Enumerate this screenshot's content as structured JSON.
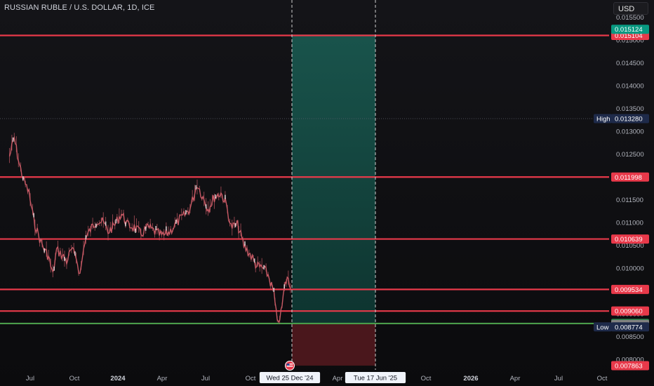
{
  "title": "RUSSIAN RUBLE / U.S. DOLLAR, 1D, ICE",
  "currency_button": "USD",
  "colors": {
    "background": "#0c0c0f",
    "resistance_line": "#e8394a",
    "support_line": "#4a9c4a",
    "candle": "#c85a65",
    "profit_zone": "#0f5b50",
    "loss_zone": "#5a1a20",
    "high_low_tag": "#1e2a4a"
  },
  "chart_data": {
    "type": "line",
    "x_axis_ticks": [
      "Jul",
      "Oct",
      "2024",
      "Apr",
      "Jul",
      "Oct",
      "Wed 25 Dec '24",
      "Apr",
      "Tue 17 Jun '25",
      "Oct",
      "2026",
      "Apr",
      "Jul",
      "Oct"
    ],
    "y_axis_ticks": [
      "0.015500",
      "0.015000",
      "0.014500",
      "0.014000",
      "0.013500",
      "0.013000",
      "0.012500",
      "0.012000",
      "0.011500",
      "0.011000",
      "0.010500",
      "0.010000",
      "0.009500",
      "0.009000",
      "0.008500",
      "0.008000"
    ],
    "ylim": [
      0.00777,
      0.01585
    ],
    "price_series": [
      [
        "2023-05-15",
        0.01245
      ],
      [
        "2023-05-25",
        0.01285
      ],
      [
        "2023-06-05",
        0.01225
      ],
      [
        "2023-06-15",
        0.0119
      ],
      [
        "2023-06-25",
        0.01165
      ],
      [
        "2023-07-05",
        0.01105
      ],
      [
        "2023-07-15",
        0.01072
      ],
      [
        "2023-07-25",
        0.01045
      ],
      [
        "2023-08-05",
        0.01025
      ],
      [
        "2023-08-14",
        0.00985
      ],
      [
        "2023-08-22",
        0.0104
      ],
      [
        "2023-09-01",
        0.0103
      ],
      [
        "2023-09-12",
        0.01015
      ],
      [
        "2023-09-22",
        0.0104
      ],
      [
        "2023-10-02",
        0.01025
      ],
      [
        "2023-10-10",
        0.00985
      ],
      [
        "2023-10-20",
        0.0106
      ],
      [
        "2023-11-01",
        0.01085
      ],
      [
        "2023-11-15",
        0.01105
      ],
      [
        "2023-11-28",
        0.011
      ],
      [
        "2023-12-08",
        0.0108
      ],
      [
        "2023-12-20",
        0.01092
      ],
      [
        "2024-01-05",
        0.0112
      ],
      [
        "2024-01-18",
        0.01095
      ],
      [
        "2024-02-01",
        0.0109
      ],
      [
        "2024-02-15",
        0.01075
      ],
      [
        "2024-03-01",
        0.0109
      ],
      [
        "2024-03-15",
        0.0108
      ],
      [
        "2024-04-01",
        0.0107
      ],
      [
        "2024-04-15",
        0.0108
      ],
      [
        "2024-05-01",
        0.011
      ],
      [
        "2024-05-15",
        0.01115
      ],
      [
        "2024-05-28",
        0.0113
      ],
      [
        "2024-06-12",
        0.01185
      ],
      [
        "2024-06-22",
        0.0116
      ],
      [
        "2024-07-05",
        0.0113
      ],
      [
        "2024-07-18",
        0.01155
      ],
      [
        "2024-08-01",
        0.01165
      ],
      [
        "2024-08-12",
        0.0114
      ],
      [
        "2024-08-22",
        0.0109
      ],
      [
        "2024-09-05",
        0.01095
      ],
      [
        "2024-09-18",
        0.0105
      ],
      [
        "2024-10-01",
        0.0103
      ],
      [
        "2024-10-15",
        0.01005
      ],
      [
        "2024-10-28",
        0.01
      ],
      [
        "2024-11-08",
        0.00985
      ],
      [
        "2024-11-20",
        0.00945
      ],
      [
        "2024-11-27",
        0.0088
      ],
      [
        "2024-12-05",
        0.009
      ],
      [
        "2024-12-12",
        0.00955
      ],
      [
        "2024-12-18",
        0.0098
      ],
      [
        "2024-12-25",
        0.00955
      ]
    ],
    "horizontal_levels": [
      {
        "value": 0.015104,
        "label": "0.015104",
        "kind": "resistance"
      },
      {
        "value": 0.011998,
        "label": "0.011998",
        "kind": "resistance"
      },
      {
        "value": 0.010639,
        "label": "0.010639",
        "kind": "resistance"
      },
      {
        "value": 0.009534,
        "label": "0.009534",
        "kind": "resistance"
      },
      {
        "value": 0.00906,
        "label": "0.009060",
        "kind": "resistance"
      },
      {
        "value": 0.008787,
        "label": "0.008787",
        "kind": "support"
      }
    ],
    "price_tags": [
      {
        "value": 0.015124,
        "label": "0.015124",
        "style": "target"
      },
      {
        "value": 0.008764,
        "label": "0.008764",
        "style": "current"
      },
      {
        "value": 0.007863,
        "label": "0.007863",
        "style": "stop"
      }
    ],
    "high": {
      "value": 0.01328,
      "label": "0.013280",
      "caption": "High"
    },
    "low": {
      "value": 0.008774,
      "label": "0.008774",
      "caption": "Low"
    },
    "position": {
      "type": "long",
      "start_date": "Wed 25 Dec '24",
      "end_date": "Tue 17 Jun '25",
      "entry": 0.008787,
      "target": 0.015124,
      "stop": 0.007863
    },
    "legend": "none",
    "grid": false
  }
}
